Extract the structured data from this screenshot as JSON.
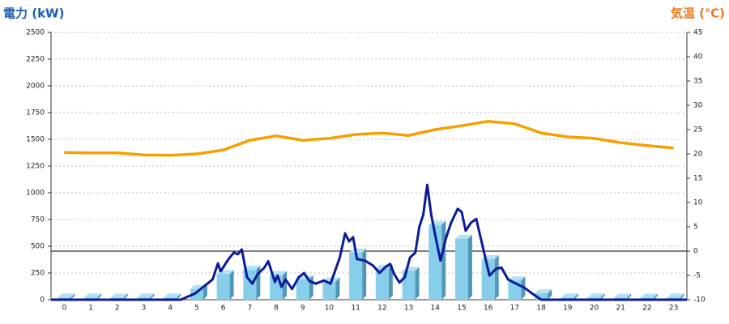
{
  "chart_data": {
    "type": "bar-line",
    "y_title": "電力 (kW)",
    "y2_title": "気温 (℃)",
    "categories": [
      "0",
      "1",
      "2",
      "3",
      "4",
      "5",
      "6",
      "7",
      "8",
      "9",
      "10",
      "11",
      "12",
      "13",
      "14",
      "15",
      "16",
      "17",
      "18",
      "19",
      "20",
      "21",
      "22",
      "23"
    ],
    "ylim": [
      0,
      2500
    ],
    "yticks": [
      0,
      250,
      500,
      750,
      1000,
      1250,
      1500,
      1750,
      2000,
      2250,
      2500
    ],
    "y2lim": [
      -10,
      45
    ],
    "y2ticks": [
      -10,
      -5,
      0,
      5,
      10,
      15,
      20,
      25,
      30,
      35,
      40,
      45
    ],
    "grid": true,
    "bars": {
      "color": "#87ceeb",
      "values": [
        20,
        20,
        20,
        20,
        20,
        100,
        240,
        280,
        230,
        190,
        170,
        440,
        290,
        270,
        700,
        570,
        380,
        180,
        60,
        20,
        20,
        20,
        20,
        20
      ]
    },
    "power_line": {
      "color": "#0a1a99",
      "x": [
        -0.5,
        4.4,
        4.95,
        5.4,
        5.6,
        5.8,
        5.9,
        6.2,
        6.4,
        6.55,
        6.7,
        6.9,
        7.1,
        7.3,
        7.55,
        7.7,
        7.95,
        8.05,
        8.2,
        8.35,
        8.6,
        8.85,
        9.05,
        9.25,
        9.5,
        9.8,
        10.05,
        10.3,
        10.4,
        10.6,
        10.75,
        10.9,
        11.05,
        11.35,
        11.65,
        11.9,
        12.1,
        12.3,
        12.45,
        12.65,
        12.85,
        13.05,
        13.25,
        13.4,
        13.55,
        13.7,
        13.85,
        14.0,
        14.2,
        14.4,
        14.6,
        14.85,
        15.0,
        15.15,
        15.35,
        15.55,
        15.8,
        16.05,
        16.3,
        16.5,
        16.75,
        17.05,
        17.35,
        17.65,
        18.0,
        23.5
      ],
      "values": [
        0,
        0,
        60,
        150,
        190,
        340,
        265,
        380,
        440,
        425,
        470,
        210,
        150,
        240,
        300,
        360,
        165,
        225,
        120,
        190,
        100,
        210,
        250,
        175,
        150,
        180,
        150,
        325,
        395,
        620,
        545,
        585,
        380,
        365,
        320,
        250,
        300,
        335,
        240,
        160,
        210,
        395,
        440,
        680,
        795,
        1075,
        795,
        605,
        365,
        570,
        720,
        850,
        820,
        645,
        720,
        755,
        490,
        225,
        290,
        300,
        190,
        150,
        115,
        60,
        0,
        0
      ]
    },
    "temperature": {
      "color": "#f5a000",
      "axis": "y2",
      "values": [
        20.3,
        20.2,
        20.2,
        19.8,
        19.7,
        20.0,
        20.8,
        22.8,
        23.7,
        22.8,
        23.2,
        24.0,
        24.3,
        23.8,
        25.0,
        25.8,
        26.7,
        26.2,
        24.3,
        23.5,
        23.2,
        22.3,
        21.7,
        21.2
      ]
    }
  }
}
